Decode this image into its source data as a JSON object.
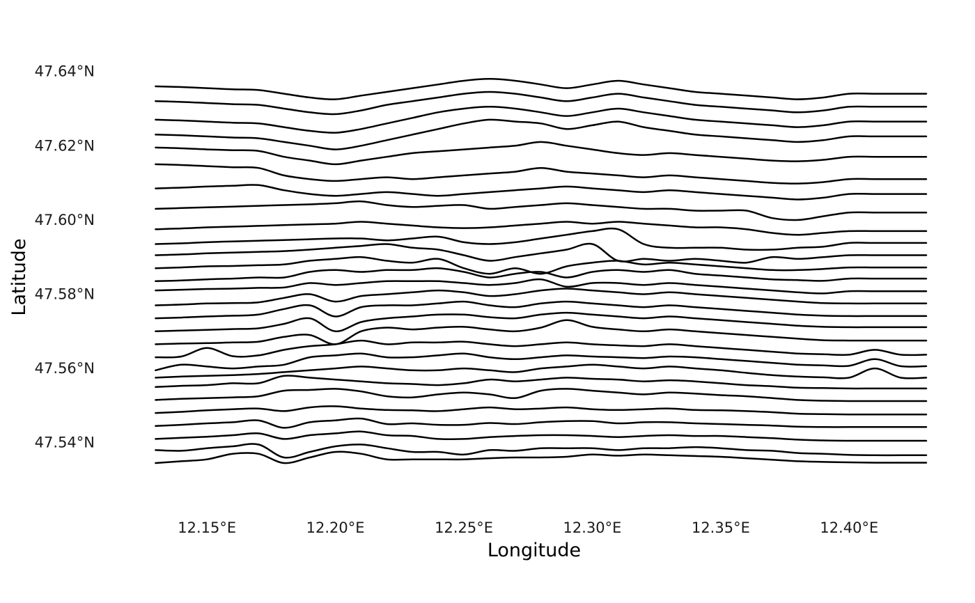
{
  "chart_data": {
    "type": "line",
    "subtype": "ridgeline-elevation-profiles",
    "title": "",
    "xlabel": "Longitude",
    "ylabel": "Latitude",
    "xlim": [
      12.125,
      12.43
    ],
    "ylim": [
      47.527,
      47.648
    ],
    "x_ticks": [
      {
        "value": 12.15,
        "label": "12.15°E"
      },
      {
        "value": 12.2,
        "label": "12.20°E"
      },
      {
        "value": 12.25,
        "label": "12.25°E"
      },
      {
        "value": 12.3,
        "label": "12.30°E"
      },
      {
        "value": 12.35,
        "label": "12.35°E"
      },
      {
        "value": 12.4,
        "label": "12.40°E"
      }
    ],
    "y_ticks": [
      {
        "value": 47.54,
        "label": "47.54°N"
      },
      {
        "value": 47.56,
        "label": "47.56°N"
      },
      {
        "value": 47.58,
        "label": "47.58°N"
      },
      {
        "value": 47.6,
        "label": "47.60°N"
      },
      {
        "value": 47.62,
        "label": "47.62°N"
      },
      {
        "value": 47.64,
        "label": "47.64°N"
      }
    ],
    "grid": false,
    "legend": "none",
    "line_color": "#000000",
    "x": [
      12.13,
      12.14,
      12.15,
      12.16,
      12.17,
      12.18,
      12.19,
      12.2,
      12.21,
      12.22,
      12.23,
      12.24,
      12.25,
      12.26,
      12.27,
      12.28,
      12.29,
      12.3,
      12.31,
      12.32,
      12.33,
      12.34,
      12.35,
      12.36,
      12.37,
      12.38,
      12.39,
      12.4,
      12.41,
      12.42,
      12.43
    ],
    "series": [
      {
        "values": [
          47.5345,
          47.535,
          47.5355,
          47.537,
          47.537,
          47.5345,
          47.536,
          47.5375,
          47.537,
          47.5355,
          47.5355,
          47.5355,
          47.5355,
          47.5358,
          47.536,
          47.536,
          47.5362,
          47.5368,
          47.5365,
          47.5368,
          47.5366,
          47.5364,
          47.5362,
          47.5358,
          47.5354,
          47.535,
          47.5348,
          47.5347,
          47.5346,
          47.5346,
          47.5346
        ]
      },
      {
        "values": [
          47.538,
          47.5378,
          47.5385,
          47.539,
          47.5395,
          47.536,
          47.5375,
          47.539,
          47.5395,
          47.5385,
          47.5375,
          47.5375,
          47.5368,
          47.538,
          47.5378,
          47.5385,
          47.5385,
          47.5385,
          47.538,
          47.5385,
          47.5385,
          47.5388,
          47.5385,
          47.538,
          47.5378,
          47.5372,
          47.537,
          47.5367,
          47.5366,
          47.5366,
          47.5366
        ]
      },
      {
        "values": [
          47.541,
          47.5413,
          47.5416,
          47.542,
          47.5425,
          47.541,
          47.542,
          47.5425,
          47.543,
          47.542,
          47.5418,
          47.541,
          47.541,
          47.5415,
          47.5418,
          47.542,
          47.542,
          47.5418,
          47.5415,
          47.5418,
          47.542,
          47.5418,
          47.5418,
          47.5415,
          47.5412,
          47.5408,
          47.5406,
          47.5405,
          47.5405,
          47.5405,
          47.5405
        ]
      },
      {
        "values": [
          47.5445,
          47.5448,
          47.5452,
          47.5455,
          47.546,
          47.544,
          47.5455,
          47.546,
          47.5465,
          47.545,
          47.5452,
          47.5448,
          47.5448,
          47.5453,
          47.545,
          47.5455,
          47.5458,
          47.5458,
          47.5452,
          47.5455,
          47.5455,
          47.5452,
          47.545,
          47.5448,
          47.5446,
          47.5443,
          47.5442,
          47.5442,
          47.5442,
          47.5442,
          47.5442
        ]
      },
      {
        "values": [
          47.548,
          47.5483,
          47.5487,
          47.549,
          47.5492,
          47.5485,
          47.5495,
          47.5498,
          47.5492,
          47.5488,
          47.5487,
          47.5485,
          47.549,
          47.5495,
          47.549,
          47.5492,
          47.5495,
          47.549,
          47.5488,
          47.549,
          47.5492,
          47.5488,
          47.5487,
          47.5485,
          47.5482,
          47.5478,
          47.5477,
          47.5476,
          47.5476,
          47.5476,
          47.5476
        ]
      },
      {
        "values": [
          47.5515,
          47.5518,
          47.552,
          47.5522,
          47.5525,
          47.554,
          47.5542,
          47.5545,
          47.5538,
          47.5525,
          47.5522,
          47.553,
          47.5535,
          47.553,
          47.552,
          47.554,
          47.5545,
          47.554,
          47.5535,
          47.553,
          47.5535,
          47.5532,
          47.5528,
          47.5525,
          47.552,
          47.5515,
          47.5513,
          47.5512,
          47.5512,
          47.5512,
          47.5512
        ]
      },
      {
        "values": [
          47.555,
          47.5553,
          47.5555,
          47.556,
          47.556,
          47.558,
          47.5575,
          47.557,
          47.5565,
          47.556,
          47.5558,
          47.5555,
          47.556,
          47.557,
          47.5565,
          47.557,
          47.5575,
          47.5572,
          47.557,
          47.5565,
          47.5568,
          47.5565,
          47.556,
          47.5555,
          47.5552,
          47.5548,
          47.5547,
          47.5546,
          47.5546,
          47.5546,
          47.5546
        ]
      },
      {
        "values": [
          47.5575,
          47.5578,
          47.558,
          47.5582,
          47.5585,
          47.559,
          47.5595,
          47.56,
          47.5605,
          47.56,
          47.5595,
          47.5595,
          47.56,
          47.5595,
          47.559,
          47.56,
          47.5605,
          47.561,
          47.5605,
          47.56,
          47.5605,
          47.56,
          47.5595,
          47.5588,
          47.5582,
          47.5578,
          47.5576,
          47.5575,
          47.56,
          47.5575,
          47.5575
        ]
      },
      {
        "values": [
          47.5595,
          47.561,
          47.5605,
          47.56,
          47.5605,
          47.561,
          47.563,
          47.5635,
          47.564,
          47.563,
          47.563,
          47.5635,
          47.564,
          47.563,
          47.5625,
          47.563,
          47.5635,
          47.5632,
          47.563,
          47.5628,
          47.5632,
          47.563,
          47.5625,
          47.562,
          47.5615,
          47.561,
          47.5608,
          47.5607,
          47.5625,
          47.5606,
          47.5606
        ]
      },
      {
        "values": [
          47.563,
          47.5632,
          47.5655,
          47.5633,
          47.5635,
          47.565,
          47.566,
          47.5665,
          47.5675,
          47.5665,
          47.567,
          47.567,
          47.5672,
          47.5665,
          47.566,
          47.5665,
          47.567,
          47.5665,
          47.5662,
          47.566,
          47.5665,
          47.566,
          47.5655,
          47.565,
          47.5645,
          47.564,
          47.5638,
          47.5637,
          47.565,
          47.5637,
          47.5637
        ]
      },
      {
        "values": [
          47.5665,
          47.5667,
          47.5668,
          47.567,
          47.5672,
          47.5685,
          47.569,
          47.5665,
          47.57,
          47.571,
          47.5705,
          47.571,
          47.5712,
          47.5705,
          47.57,
          47.571,
          47.573,
          47.5712,
          47.5705,
          47.57,
          47.5705,
          47.57,
          47.5695,
          47.569,
          47.5685,
          47.568,
          47.5676,
          47.5675,
          47.5675,
          47.5675,
          47.5675
        ]
      },
      {
        "values": [
          47.57,
          47.5702,
          47.5704,
          47.5706,
          47.5708,
          47.572,
          47.5735,
          47.57,
          47.5725,
          47.5735,
          47.574,
          47.5745,
          47.5745,
          47.5738,
          47.5735,
          47.5745,
          47.575,
          47.5745,
          47.574,
          47.5735,
          47.574,
          47.5735,
          47.573,
          47.5725,
          47.572,
          47.5715,
          47.5712,
          47.5711,
          47.5711,
          47.5711,
          47.5711
        ]
      },
      {
        "values": [
          47.5735,
          47.5737,
          47.574,
          47.5742,
          47.5745,
          47.576,
          47.577,
          47.574,
          47.5765,
          47.577,
          47.577,
          47.5775,
          47.578,
          47.577,
          47.5765,
          47.5775,
          47.578,
          47.5775,
          47.577,
          47.5765,
          47.577,
          47.5765,
          47.576,
          47.5755,
          47.575,
          47.5745,
          47.5742,
          47.5741,
          47.5741,
          47.5741,
          47.5741
        ]
      },
      {
        "values": [
          47.577,
          47.5772,
          47.5775,
          47.5776,
          47.5778,
          47.579,
          47.58,
          47.578,
          47.5795,
          47.58,
          47.5805,
          47.581,
          47.5805,
          47.5795,
          47.58,
          47.581,
          47.5815,
          47.581,
          47.5805,
          47.58,
          47.5805,
          47.58,
          47.5795,
          47.579,
          47.5785,
          47.578,
          47.5776,
          47.5775,
          47.5775,
          47.5775,
          47.5775
        ]
      },
      {
        "values": [
          47.581,
          47.5812,
          47.5814,
          47.5815,
          47.5817,
          47.5818,
          47.583,
          47.5825,
          47.583,
          47.5835,
          47.5835,
          47.5835,
          47.583,
          47.5825,
          47.583,
          47.584,
          47.582,
          47.583,
          47.583,
          47.5825,
          47.583,
          47.5825,
          47.582,
          47.5815,
          47.581,
          47.5805,
          47.5802,
          47.5808,
          47.5808,
          47.5808,
          47.5808
        ]
      },
      {
        "values": [
          47.5835,
          47.5837,
          47.584,
          47.5842,
          47.5845,
          47.5845,
          47.586,
          47.5865,
          47.586,
          47.5865,
          47.5865,
          47.587,
          47.586,
          47.5845,
          47.5855,
          47.586,
          47.5845,
          47.586,
          47.5865,
          47.586,
          47.5865,
          47.5855,
          47.585,
          47.5845,
          47.584,
          47.5838,
          47.5836,
          47.5842,
          47.5842,
          47.5842,
          47.5842
        ]
      },
      {
        "values": [
          47.587,
          47.5872,
          47.5875,
          47.5876,
          47.5878,
          47.588,
          47.589,
          47.5895,
          47.59,
          47.589,
          47.5885,
          47.5895,
          47.587,
          47.5855,
          47.587,
          47.5855,
          47.5875,
          47.5885,
          47.589,
          47.588,
          47.5885,
          47.588,
          47.5875,
          47.587,
          47.5865,
          47.5865,
          47.5868,
          47.5872,
          47.5872,
          47.5872,
          47.5872
        ]
      },
      {
        "values": [
          47.5905,
          47.5907,
          47.591,
          47.5912,
          47.5914,
          47.5916,
          47.592,
          47.5925,
          47.593,
          47.5935,
          47.5925,
          47.592,
          47.5905,
          47.589,
          47.59,
          47.591,
          47.592,
          47.5935,
          47.589,
          47.5895,
          47.589,
          47.5895,
          47.589,
          47.5885,
          47.59,
          47.5895,
          47.59,
          47.5905,
          47.5905,
          47.5905,
          47.5905
        ]
      },
      {
        "values": [
          47.5935,
          47.5937,
          47.594,
          47.5942,
          47.5944,
          47.5946,
          47.5948,
          47.595,
          47.595,
          47.5945,
          47.595,
          47.5955,
          47.594,
          47.5935,
          47.594,
          47.595,
          47.596,
          47.597,
          47.5975,
          47.5935,
          47.5925,
          47.5925,
          47.5925,
          47.592,
          47.592,
          47.5925,
          47.5928,
          47.5938,
          47.5938,
          47.5938,
          47.5938
        ]
      },
      {
        "values": [
          47.5975,
          47.5977,
          47.598,
          47.5982,
          47.5984,
          47.5986,
          47.5988,
          47.599,
          47.5995,
          47.599,
          47.5985,
          47.598,
          47.5978,
          47.598,
          47.5985,
          47.599,
          47.5995,
          47.599,
          47.5995,
          47.599,
          47.5985,
          47.598,
          47.598,
          47.5975,
          47.5965,
          47.596,
          47.5965,
          47.597,
          47.597,
          47.597,
          47.597
        ]
      },
      {
        "values": [
          47.603,
          47.6032,
          47.6034,
          47.6036,
          47.6038,
          47.604,
          47.6042,
          47.6045,
          47.605,
          47.604,
          47.6035,
          47.6038,
          47.604,
          47.603,
          47.6035,
          47.604,
          47.6045,
          47.604,
          47.6035,
          47.603,
          47.603,
          47.6025,
          47.6025,
          47.6025,
          47.6005,
          47.6,
          47.601,
          47.602,
          47.602,
          47.602,
          47.602
        ]
      },
      {
        "values": [
          47.6085,
          47.6087,
          47.609,
          47.6092,
          47.6094,
          47.608,
          47.607,
          47.6065,
          47.607,
          47.6075,
          47.607,
          47.6065,
          47.607,
          47.6075,
          47.608,
          47.6085,
          47.609,
          47.6085,
          47.608,
          47.6075,
          47.608,
          47.6075,
          47.607,
          47.6065,
          47.606,
          47.6055,
          47.606,
          47.607,
          47.607,
          47.607,
          47.607
        ]
      },
      {
        "values": [
          47.615,
          47.6148,
          47.6145,
          47.6142,
          47.614,
          47.612,
          47.611,
          47.6105,
          47.611,
          47.6115,
          47.611,
          47.6115,
          47.612,
          47.6125,
          47.613,
          47.614,
          47.613,
          47.6125,
          47.612,
          47.6115,
          47.612,
          47.6115,
          47.611,
          47.6105,
          47.61,
          47.6098,
          47.6102,
          47.611,
          47.611,
          47.611,
          47.611
        ]
      },
      {
        "values": [
          47.6195,
          47.6193,
          47.619,
          47.6188,
          47.6186,
          47.617,
          47.616,
          47.615,
          47.616,
          47.617,
          47.618,
          47.6185,
          47.619,
          47.6195,
          47.62,
          47.621,
          47.62,
          47.619,
          47.618,
          47.6175,
          47.618,
          47.6175,
          47.617,
          47.6165,
          47.616,
          47.6158,
          47.6162,
          47.617,
          47.617,
          47.617,
          47.617
        ]
      },
      {
        "values": [
          47.623,
          47.6228,
          47.6225,
          47.6222,
          47.622,
          47.621,
          47.62,
          47.619,
          47.62,
          47.6215,
          47.623,
          47.6245,
          47.626,
          47.627,
          47.6265,
          47.626,
          47.6245,
          47.6255,
          47.6265,
          47.625,
          47.624,
          47.623,
          47.6225,
          47.622,
          47.6215,
          47.621,
          47.6215,
          47.6225,
          47.6225,
          47.6225,
          47.6225
        ]
      },
      {
        "values": [
          47.627,
          47.6268,
          47.6265,
          47.6262,
          47.626,
          47.625,
          47.624,
          47.6235,
          47.6245,
          47.626,
          47.6275,
          47.629,
          47.63,
          47.6305,
          47.63,
          47.629,
          47.628,
          47.629,
          47.63,
          47.629,
          47.628,
          47.627,
          47.6265,
          47.626,
          47.6255,
          47.625,
          47.6255,
          47.6265,
          47.6265,
          47.6265,
          47.6265
        ]
      },
      {
        "values": [
          47.632,
          47.6318,
          47.6315,
          47.6312,
          47.631,
          47.63,
          47.629,
          47.6285,
          47.6295,
          47.631,
          47.632,
          47.633,
          47.634,
          47.6345,
          47.634,
          47.633,
          47.632,
          47.633,
          47.634,
          47.633,
          47.632,
          47.631,
          47.6305,
          47.63,
          47.6295,
          47.629,
          47.6295,
          47.6305,
          47.6305,
          47.6305,
          47.6305
        ]
      },
      {
        "values": [
          47.636,
          47.6358,
          47.6355,
          47.6352,
          47.635,
          47.634,
          47.633,
          47.6325,
          47.6335,
          47.6345,
          47.6355,
          47.6365,
          47.6375,
          47.638,
          47.6375,
          47.6365,
          47.6355,
          47.6365,
          47.6375,
          47.6365,
          47.6355,
          47.6345,
          47.634,
          47.6335,
          47.633,
          47.6325,
          47.633,
          47.634,
          47.634,
          47.634,
          47.634
        ]
      }
    ]
  }
}
